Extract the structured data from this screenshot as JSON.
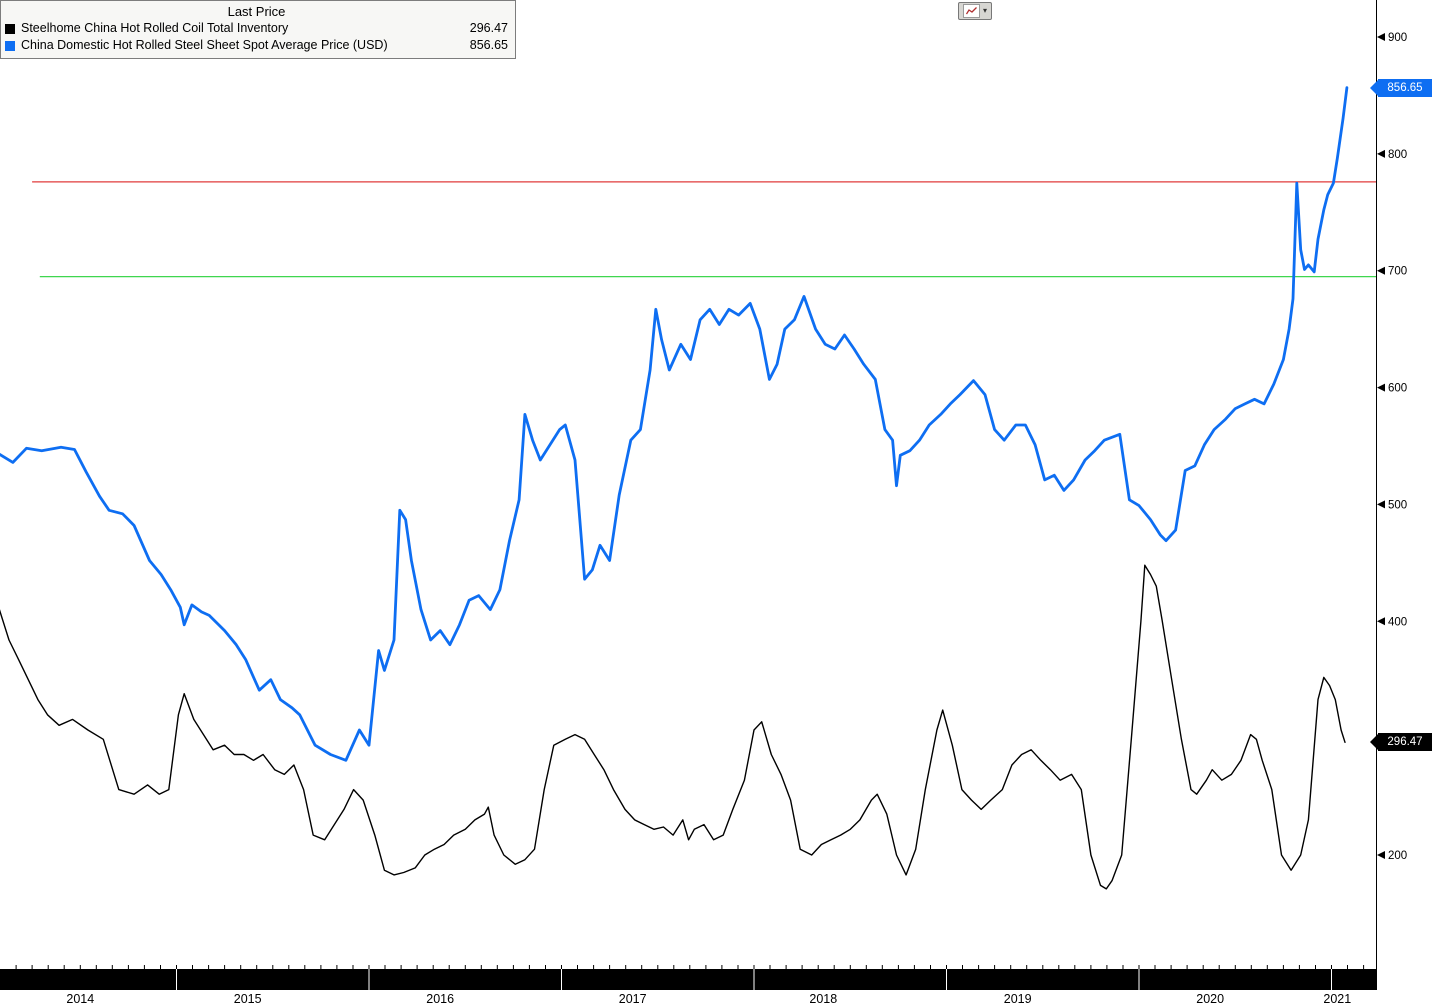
{
  "legend": {
    "title": "Last Price",
    "series": [
      {
        "label": "Steelhome China Hot Rolled Coil Total Inventory",
        "value": "296.47",
        "color": "#000000"
      },
      {
        "label": "China Domestic Hot Rolled Steel Sheet Spot Average Price (USD)",
        "value": "856.65",
        "color": "#0e6ef2"
      }
    ]
  },
  "toolbar": {
    "caret": "▾"
  },
  "price_labels": [
    {
      "text": "856.65",
      "value": 856.65,
      "color": "#0e6ef2"
    },
    {
      "text": "296.47",
      "value": 296.47,
      "color": "#000000"
    }
  ],
  "chart_data": {
    "type": "line",
    "title": "Last Price",
    "grid": false,
    "legend_position": "top-left",
    "xlim": [
      2014.05,
      2021.25
    ],
    "ylim": [
      150,
      910
    ],
    "y_ticks": [
      900,
      800,
      700,
      600,
      500,
      400,
      200
    ],
    "x_ticks": [
      {
        "label": "2014",
        "t": 2014.5
      },
      {
        "label": "2015",
        "t": 2015.37
      },
      {
        "label": "2016",
        "t": 2016.37
      },
      {
        "label": "2017",
        "t": 2017.37
      },
      {
        "label": "2018",
        "t": 2018.36
      },
      {
        "label": "2019",
        "t": 2019.37
      },
      {
        "label": "2020",
        "t": 2020.37
      },
      {
        "label": "2021",
        "t": 2021.03
      }
    ],
    "reference_lines": [
      {
        "value": 776,
        "color": "#e13b3b",
        "t_start": 2014.25
      },
      {
        "value": 695,
        "color": "#3fd64f",
        "t_start": 2014.29
      }
    ],
    "series": [
      {
        "name": "Steelhome China Hot Rolled Coil Total Inventory",
        "color": "#000000",
        "last_value": 296.47,
        "points": [
          [
            2014.08,
            410
          ],
          [
            2014.13,
            384
          ],
          [
            2014.18,
            367
          ],
          [
            2014.23,
            350
          ],
          [
            2014.28,
            333
          ],
          [
            2014.33,
            320
          ],
          [
            2014.39,
            311
          ],
          [
            2014.46,
            316
          ],
          [
            2014.54,
            307
          ],
          [
            2014.62,
            299
          ],
          [
            2014.7,
            256
          ],
          [
            2014.78,
            252
          ],
          [
            2014.85,
            260
          ],
          [
            2014.91,
            252
          ],
          [
            2014.96,
            256
          ],
          [
            2015.01,
            320
          ],
          [
            2015.04,
            338
          ],
          [
            2015.09,
            316
          ],
          [
            2015.14,
            303
          ],
          [
            2015.19,
            290
          ],
          [
            2015.25,
            294
          ],
          [
            2015.3,
            286
          ],
          [
            2015.35,
            286
          ],
          [
            2015.4,
            281
          ],
          [
            2015.45,
            286
          ],
          [
            2015.51,
            273
          ],
          [
            2015.56,
            269
          ],
          [
            2015.61,
            277
          ],
          [
            2015.66,
            256
          ],
          [
            2015.71,
            217
          ],
          [
            2015.77,
            213
          ],
          [
            2015.82,
            226
          ],
          [
            2015.87,
            239
          ],
          [
            2015.92,
            256
          ],
          [
            2015.97,
            247
          ],
          [
            2016.03,
            217
          ],
          [
            2016.08,
            187
          ],
          [
            2016.13,
            183
          ],
          [
            2016.18,
            185
          ],
          [
            2016.24,
            189
          ],
          [
            2016.29,
            200
          ],
          [
            2016.34,
            205
          ],
          [
            2016.39,
            209
          ],
          [
            2016.44,
            217
          ],
          [
            2016.5,
            222
          ],
          [
            2016.55,
            230
          ],
          [
            2016.6,
            235
          ],
          [
            2016.62,
            241
          ],
          [
            2016.65,
            217
          ],
          [
            2016.7,
            200
          ],
          [
            2016.76,
            192
          ],
          [
            2016.81,
            196
          ],
          [
            2016.86,
            205
          ],
          [
            2016.91,
            256
          ],
          [
            2016.96,
            294
          ],
          [
            2017.02,
            299
          ],
          [
            2017.07,
            303
          ],
          [
            2017.12,
            299
          ],
          [
            2017.17,
            286
          ],
          [
            2017.22,
            273
          ],
          [
            2017.27,
            256
          ],
          [
            2017.33,
            239
          ],
          [
            2017.38,
            230
          ],
          [
            2017.43,
            226
          ],
          [
            2017.48,
            222
          ],
          [
            2017.53,
            224
          ],
          [
            2017.58,
            217
          ],
          [
            2017.63,
            230
          ],
          [
            2017.66,
            213
          ],
          [
            2017.69,
            222
          ],
          [
            2017.74,
            226
          ],
          [
            2017.79,
            213
          ],
          [
            2017.84,
            217
          ],
          [
            2017.89,
            239
          ],
          [
            2017.95,
            264
          ],
          [
            2018.0,
            307
          ],
          [
            2018.04,
            314
          ],
          [
            2018.09,
            286
          ],
          [
            2018.14,
            269
          ],
          [
            2018.19,
            247
          ],
          [
            2018.24,
            205
          ],
          [
            2018.3,
            200
          ],
          [
            2018.35,
            209
          ],
          [
            2018.4,
            213
          ],
          [
            2018.45,
            217
          ],
          [
            2018.5,
            222
          ],
          [
            2018.55,
            230
          ],
          [
            2018.61,
            247
          ],
          [
            2018.64,
            252
          ],
          [
            2018.69,
            235
          ],
          [
            2018.74,
            200
          ],
          [
            2018.79,
            183
          ],
          [
            2018.84,
            205
          ],
          [
            2018.89,
            256
          ],
          [
            2018.95,
            307
          ],
          [
            2018.98,
            324
          ],
          [
            2019.03,
            294
          ],
          [
            2019.08,
            256
          ],
          [
            2019.13,
            247
          ],
          [
            2019.18,
            239
          ],
          [
            2019.23,
            247
          ],
          [
            2019.29,
            256
          ],
          [
            2019.34,
            277
          ],
          [
            2019.39,
            286
          ],
          [
            2019.44,
            290
          ],
          [
            2019.49,
            281
          ],
          [
            2019.54,
            273
          ],
          [
            2019.59,
            264
          ],
          [
            2019.65,
            269
          ],
          [
            2019.7,
            256
          ],
          [
            2019.75,
            200
          ],
          [
            2019.8,
            174
          ],
          [
            2019.83,
            171
          ],
          [
            2019.86,
            178
          ],
          [
            2019.91,
            200
          ],
          [
            2019.96,
            299
          ],
          [
            2020.01,
            400
          ],
          [
            2020.03,
            448
          ],
          [
            2020.06,
            440
          ],
          [
            2020.09,
            430
          ],
          [
            2020.12,
            401
          ],
          [
            2020.17,
            350
          ],
          [
            2020.22,
            299
          ],
          [
            2020.27,
            256
          ],
          [
            2020.3,
            252
          ],
          [
            2020.35,
            264
          ],
          [
            2020.38,
            273
          ],
          [
            2020.43,
            264
          ],
          [
            2020.48,
            269
          ],
          [
            2020.53,
            281
          ],
          [
            2020.58,
            303
          ],
          [
            2020.61,
            299
          ],
          [
            2020.64,
            281
          ],
          [
            2020.69,
            256
          ],
          [
            2020.74,
            200
          ],
          [
            2020.79,
            187
          ],
          [
            2020.84,
            200
          ],
          [
            2020.88,
            230
          ],
          [
            2020.93,
            333
          ],
          [
            2020.96,
            352
          ],
          [
            2020.99,
            345
          ],
          [
            2021.02,
            333
          ],
          [
            2021.05,
            307
          ],
          [
            2021.07,
            296.47
          ]
        ]
      },
      {
        "name": "China Domestic Hot Rolled Steel Sheet Spot Average Price (USD)",
        "color": "#0e6ef2",
        "last_value": 856.65,
        "points": [
          [
            2014.08,
            543
          ],
          [
            2014.15,
            536
          ],
          [
            2014.22,
            548
          ],
          [
            2014.3,
            546
          ],
          [
            2014.4,
            549
          ],
          [
            2014.47,
            547
          ],
          [
            2014.53,
            528
          ],
          [
            2014.6,
            507
          ],
          [
            2014.65,
            495
          ],
          [
            2014.72,
            492
          ],
          [
            2014.78,
            482
          ],
          [
            2014.86,
            452
          ],
          [
            2014.92,
            440
          ],
          [
            2014.97,
            427
          ],
          [
            2015.02,
            412
          ],
          [
            2015.04,
            397
          ],
          [
            2015.08,
            414
          ],
          [
            2015.13,
            408
          ],
          [
            2015.17,
            405
          ],
          [
            2015.25,
            392
          ],
          [
            2015.31,
            380
          ],
          [
            2015.36,
            367
          ],
          [
            2015.43,
            341
          ],
          [
            2015.49,
            350
          ],
          [
            2015.54,
            333
          ],
          [
            2015.6,
            326
          ],
          [
            2015.64,
            320
          ],
          [
            2015.72,
            294
          ],
          [
            2015.8,
            286
          ],
          [
            2015.88,
            281
          ],
          [
            2015.95,
            307
          ],
          [
            2016.0,
            294
          ],
          [
            2016.05,
            375
          ],
          [
            2016.08,
            358
          ],
          [
            2016.13,
            384
          ],
          [
            2016.16,
            495
          ],
          [
            2016.19,
            487
          ],
          [
            2016.22,
            452
          ],
          [
            2016.27,
            410
          ],
          [
            2016.32,
            384
          ],
          [
            2016.37,
            392
          ],
          [
            2016.42,
            380
          ],
          [
            2016.47,
            397
          ],
          [
            2016.52,
            418
          ],
          [
            2016.57,
            422
          ],
          [
            2016.63,
            410
          ],
          [
            2016.68,
            427
          ],
          [
            2016.73,
            469
          ],
          [
            2016.78,
            504
          ],
          [
            2016.81,
            577
          ],
          [
            2016.85,
            555
          ],
          [
            2016.89,
            538
          ],
          [
            2016.94,
            551
          ],
          [
            2016.99,
            564
          ],
          [
            2017.02,
            568
          ],
          [
            2017.07,
            538
          ],
          [
            2017.12,
            436
          ],
          [
            2017.16,
            444
          ],
          [
            2017.2,
            465
          ],
          [
            2017.25,
            452
          ],
          [
            2017.3,
            508
          ],
          [
            2017.36,
            555
          ],
          [
            2017.41,
            564
          ],
          [
            2017.46,
            615
          ],
          [
            2017.49,
            667
          ],
          [
            2017.52,
            641
          ],
          [
            2017.56,
            615
          ],
          [
            2017.62,
            637
          ],
          [
            2017.67,
            624
          ],
          [
            2017.72,
            658
          ],
          [
            2017.77,
            667
          ],
          [
            2017.82,
            654
          ],
          [
            2017.87,
            667
          ],
          [
            2017.92,
            662
          ],
          [
            2017.98,
            672
          ],
          [
            2018.03,
            650
          ],
          [
            2018.08,
            607
          ],
          [
            2018.12,
            620
          ],
          [
            2018.16,
            650
          ],
          [
            2018.21,
            658
          ],
          [
            2018.26,
            678
          ],
          [
            2018.32,
            650
          ],
          [
            2018.37,
            637
          ],
          [
            2018.42,
            633
          ],
          [
            2018.47,
            645
          ],
          [
            2018.52,
            633
          ],
          [
            2018.57,
            620
          ],
          [
            2018.63,
            607
          ],
          [
            2018.68,
            564
          ],
          [
            2018.72,
            555
          ],
          [
            2018.74,
            516
          ],
          [
            2018.76,
            542
          ],
          [
            2018.81,
            546
          ],
          [
            2018.86,
            555
          ],
          [
            2018.91,
            568
          ],
          [
            2018.97,
            577
          ],
          [
            2019.02,
            586
          ],
          [
            2019.07,
            594
          ],
          [
            2019.14,
            606
          ],
          [
            2019.2,
            594
          ],
          [
            2019.25,
            564
          ],
          [
            2019.3,
            555
          ],
          [
            2019.36,
            568
          ],
          [
            2019.41,
            568
          ],
          [
            2019.46,
            551
          ],
          [
            2019.51,
            521
          ],
          [
            2019.56,
            525
          ],
          [
            2019.61,
            512
          ],
          [
            2019.66,
            521
          ],
          [
            2019.72,
            538
          ],
          [
            2019.77,
            546
          ],
          [
            2019.82,
            555
          ],
          [
            2019.9,
            560
          ],
          [
            2019.95,
            504
          ],
          [
            2020.0,
            499
          ],
          [
            2020.06,
            487
          ],
          [
            2020.11,
            474
          ],
          [
            2020.14,
            469
          ],
          [
            2020.19,
            478
          ],
          [
            2020.24,
            529
          ],
          [
            2020.29,
            533
          ],
          [
            2020.34,
            551
          ],
          [
            2020.39,
            564
          ],
          [
            2020.45,
            573
          ],
          [
            2020.5,
            582
          ],
          [
            2020.55,
            586
          ],
          [
            2020.6,
            590
          ],
          [
            2020.65,
            586
          ],
          [
            2020.7,
            603
          ],
          [
            2020.75,
            624
          ],
          [
            2020.78,
            650
          ],
          [
            2020.8,
            676
          ],
          [
            2020.82,
            775
          ],
          [
            2020.84,
            718
          ],
          [
            2020.86,
            701
          ],
          [
            2020.88,
            705
          ],
          [
            2020.91,
            699
          ],
          [
            2020.93,
            727
          ],
          [
            2020.96,
            752
          ],
          [
            2020.98,
            765
          ],
          [
            2021.01,
            775
          ],
          [
            2021.03,
            796
          ],
          [
            2021.06,
            830
          ],
          [
            2021.08,
            856.65
          ]
        ]
      }
    ]
  }
}
